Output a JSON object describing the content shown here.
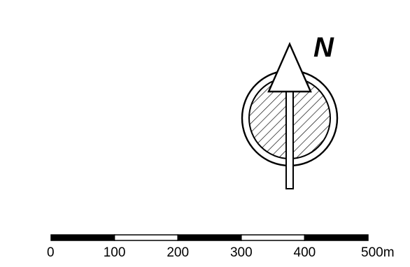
{
  "north_arrow": {
    "label": "N",
    "icon": "north-arrow-icon"
  },
  "scale_bar": {
    "unit": "m",
    "ticks": [
      "0",
      "100",
      "200",
      "300",
      "400",
      "500m"
    ],
    "segments": [
      "black",
      "white",
      "black",
      "white",
      "black"
    ]
  },
  "colors": {
    "ink": "#000000",
    "paper": "#ffffff"
  }
}
